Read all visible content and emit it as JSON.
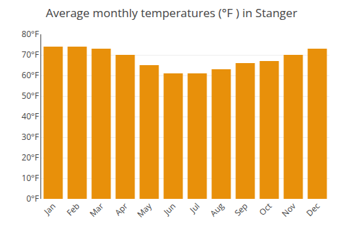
{
  "chart_data": {
    "type": "bar",
    "title": "Average monthly temperatures (°F ) in Stanger",
    "categories": [
      "Jan",
      "Feb",
      "Mar",
      "Apr",
      "May",
      "Jun",
      "Jul",
      "Aug",
      "Sep",
      "Oct",
      "Nov",
      "Dec"
    ],
    "values": [
      74,
      74,
      73,
      70,
      65,
      61,
      61,
      63,
      66,
      67,
      70,
      73
    ],
    "color": "#E8900A",
    "ylim": [
      0,
      80
    ],
    "yticks": [
      {
        "value": 0,
        "label": "0°F"
      },
      {
        "value": 10,
        "label": "10°F"
      },
      {
        "value": 20,
        "label": "20°F"
      },
      {
        "value": 30,
        "label": "30°F"
      },
      {
        "value": 40,
        "label": "40°F"
      },
      {
        "value": 50,
        "label": "50°F"
      },
      {
        "value": 60,
        "label": "60°F"
      },
      {
        "value": 70,
        "label": "70°F"
      },
      {
        "value": 80,
        "label": "80°F"
      }
    ],
    "grid": true
  }
}
